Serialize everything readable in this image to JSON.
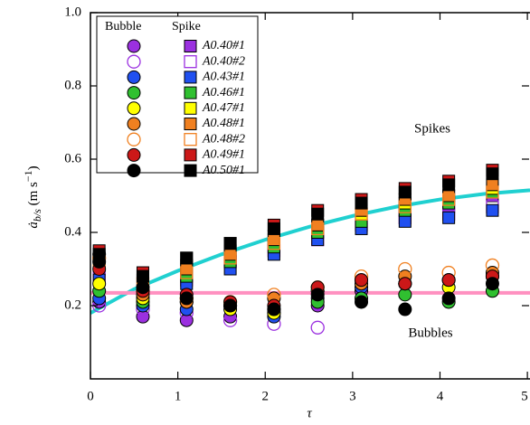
{
  "chart_data": {
    "type": "scatter",
    "xlabel": "τ",
    "ylabel": [
      "ȧ",
      "b/s",
      " (m s",
      "−1",
      ")"
    ],
    "annotations": [
      "Spikes",
      "Bubbles"
    ],
    "legend_headers": [
      "Bubble",
      "Spike"
    ],
    "xlim": [
      0,
      5.03
    ],
    "ylim": [
      0,
      1
    ],
    "xticks": [
      0,
      1,
      2,
      3,
      4,
      5
    ],
    "yticks": [
      0.2,
      0.4,
      0.6,
      0.8,
      {
        "value": 1,
        "label": "1.0"
      }
    ],
    "x": [
      0.1,
      0.6,
      1.1,
      1.6,
      2.1,
      2.6,
      3.1,
      3.6,
      4.1,
      4.6
    ],
    "series": [
      {
        "name": "A0.40#1",
        "color": "#9b30e0",
        "filled": true,
        "bubble_values": [
          0.21,
          0.17,
          0.16,
          0.17,
          0.18,
          0.2,
          0.24,
          null,
          null,
          null
        ],
        "spike_values": [
          0.3,
          0.26,
          0.29,
          0.33,
          0.37,
          0.4,
          0.43,
          0.46,
          0.47,
          0.5
        ]
      },
      {
        "name": "A0.40#2",
        "color": "#9b30e0",
        "filled": false,
        "bubble_values": [
          0.2,
          0.19,
          0.18,
          0.16,
          0.15,
          0.14,
          null,
          null,
          null,
          null
        ],
        "spike_values": [
          0.28,
          0.24,
          0.27,
          0.32,
          0.35,
          0.38,
          0.42,
          0.44,
          0.45,
          0.47
        ]
      },
      {
        "name": "A0.43#1",
        "color": "#2050f0",
        "filled": true,
        "bubble_values": [
          0.22,
          0.2,
          0.19,
          0.2,
          0.17,
          0.22,
          0.25,
          0.26,
          0.27,
          0.28
        ],
        "spike_values": [
          0.27,
          0.25,
          0.26,
          0.3,
          0.34,
          0.38,
          0.41,
          0.43,
          0.44,
          0.46
        ]
      },
      {
        "name": "A0.46#1",
        "color": "#30c030",
        "filled": true,
        "bubble_values": [
          0.24,
          0.21,
          0.22,
          0.2,
          0.19,
          0.21,
          0.22,
          0.23,
          0.21,
          0.24
        ],
        "spike_values": [
          0.31,
          0.27,
          0.28,
          0.32,
          0.36,
          0.4,
          0.43,
          0.46,
          0.48,
          0.51
        ]
      },
      {
        "name": "A0.47#1",
        "color": "#ffff00",
        "filled": true,
        "bubble_values": [
          0.26,
          0.22,
          0.21,
          0.19,
          0.18,
          0.24,
          0.27,
          0.26,
          0.25,
          0.28
        ],
        "spike_values": [
          0.33,
          0.28,
          0.31,
          0.35,
          0.39,
          0.42,
          0.45,
          0.48,
          0.5,
          0.52
        ]
      },
      {
        "name": "A0.48#1",
        "color": "#f08020",
        "filled": true,
        "bubble_values": [
          0.34,
          0.23,
          0.21,
          0.2,
          0.22,
          0.24,
          0.26,
          0.28,
          0.27,
          0.29
        ],
        "spike_values": [
          0.34,
          0.27,
          0.3,
          0.34,
          0.38,
          0.42,
          0.46,
          0.49,
          0.5,
          0.53
        ]
      },
      {
        "name": "A0.48#2",
        "color": "#f08020",
        "filled": false,
        "bubble_values": [
          0.33,
          0.24,
          0.22,
          0.21,
          0.23,
          0.25,
          0.28,
          0.3,
          0.29,
          0.31
        ],
        "spike_values": [
          0.32,
          0.26,
          0.29,
          0.33,
          0.37,
          0.41,
          0.45,
          0.47,
          0.49,
          0.51
        ]
      },
      {
        "name": "A0.49#1",
        "color": "#cc1818",
        "filled": true,
        "bubble_values": [
          0.3,
          0.24,
          0.23,
          0.21,
          0.2,
          0.25,
          0.27,
          0.26,
          0.27,
          0.28
        ],
        "spike_values": [
          0.35,
          0.29,
          0.33,
          0.37,
          0.42,
          0.46,
          0.49,
          0.52,
          0.54,
          0.57
        ]
      },
      {
        "name": "A0.50#1",
        "color": "#000000",
        "filled": true,
        "bubble_values": [
          0.32,
          0.25,
          0.22,
          0.2,
          0.19,
          0.23,
          0.21,
          0.19,
          0.22,
          0.26
        ],
        "spike_values": [
          0.34,
          0.28,
          0.33,
          0.37,
          0.41,
          0.45,
          0.48,
          0.51,
          0.53,
          0.56
        ]
      }
    ],
    "fits": [
      {
        "color": "#20d0d0",
        "x": [
          0,
          0.5,
          1,
          1.5,
          2,
          2.5,
          3,
          3.5,
          4,
          4.5,
          5.03
        ],
        "values": [
          0.18,
          0.245,
          0.295,
          0.34,
          0.38,
          0.415,
          0.445,
          0.47,
          0.49,
          0.505,
          0.515
        ]
      },
      {
        "color": "#ff90c0",
        "x": [
          0,
          5.03
        ],
        "values": [
          0.235,
          0.235
        ]
      }
    ]
  }
}
